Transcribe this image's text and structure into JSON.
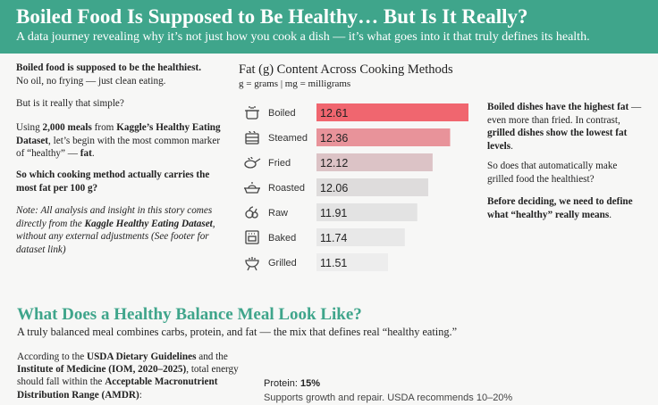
{
  "header": {
    "title": "Boiled Food Is Supposed to Be Healthy… But Is It Really?",
    "subtitle": "A data journey revealing why it’s not just how you cook a dish — it’s what goes into it that truly defines its health."
  },
  "intro": {
    "p1_bold": "Boiled food is supposed to be the healthiest.",
    "p1_rest": "No oil, no frying — just clean eating.",
    "p2": "But is it really that simple?",
    "p3_a": "Using ",
    "p3_b1": "2,000 meals",
    "p3_c": " from ",
    "p3_b2": "Kaggle’s Healthy Eating Dataset",
    "p3_d": ", let’s begin with the most common marker of “healthy” — ",
    "p3_b3": "fat",
    "p3_e": ".",
    "p4": "So which cooking method actually carries the most fat per 100 g?",
    "note_a": "Note: All analysis and insight in this story comes directly from the ",
    "note_b": "Kaggle Healthy Eating Dataset",
    "note_c": ", without any external adjustments (See footer for dataset link)"
  },
  "chart_data": {
    "type": "bar",
    "orientation": "horizontal",
    "title": "Fat (g) Content Across Cooking Methods",
    "subtitle": "g = grams | mg = milligrams",
    "categories": [
      "Boiled",
      "Steamed",
      "Fried",
      "Roasted",
      "Raw",
      "Baked",
      "Grilled"
    ],
    "labels": [
      "12.61",
      "12.36",
      "12.12",
      "12.06",
      "11.91",
      "11.74",
      "11.51"
    ],
    "values": [
      12.61,
      12.36,
      12.12,
      12.06,
      11.91,
      11.74,
      11.51
    ],
    "icons": [
      "pot-icon",
      "steamer-icon",
      "frying-pan-icon",
      "roasting-pan-icon",
      "raw-vegetables-icon",
      "oven-icon",
      "grill-icon"
    ],
    "colors": [
      "#f0666f",
      "#e8939a",
      "#dcc3c6",
      "#dedcdc",
      "#e3e3e3",
      "#e8e8e8",
      "#ededed"
    ]
  },
  "insight": {
    "p1_b1": "Boiled dishes have the highest fat",
    "p1_mid": " — even more than fried. In contrast, ",
    "p1_b2": "grilled dishes show the lowest fat levels",
    "p1_end": ".",
    "p2": "So does that automatically make grilled food the healthiest?",
    "p3_b": "Before deciding, we need to define what “healthy” really means",
    "p3_end": "."
  },
  "section2": {
    "title": "What Does a Healthy Balance Meal Look Like?",
    "subtitle": "A truly balanced meal combines carbs, protein, and fat — the mix that defines real “healthy eating.”",
    "usda_a": "According to the ",
    "usda_b1": "USDA Dietary Guidelines",
    "usda_c": " and the ",
    "usda_b2": "Institute of Medicine (IOM, 2020–2025)",
    "usda_d": ", total energy should fall within the ",
    "usda_b3": "Acceptable Macronutrient Distribution Range (AMDR)",
    "usda_e": ":",
    "protein_label": "Protein: ",
    "protein_value": "15%",
    "protein_desc": "Supports growth and repair. USDA  recommends 10–20%"
  }
}
